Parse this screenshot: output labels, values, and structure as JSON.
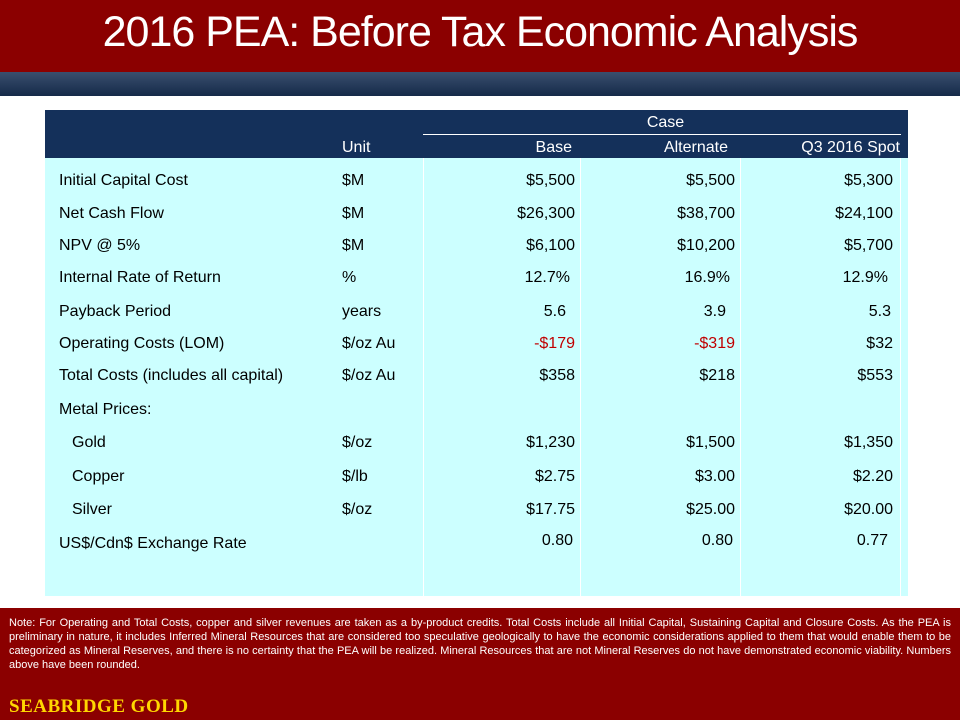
{
  "title": "2016 PEA: Before Tax Economic Analysis",
  "table": {
    "case_label": "Case",
    "headers": {
      "unit": "Unit",
      "base": "Base",
      "alternate": "Alternate",
      "spot": "Q3 2016 Spot"
    },
    "rows": [
      {
        "label": "Initial Capital Cost",
        "unit": "$M",
        "base": "$5,500",
        "alternate": "$5,500",
        "spot": "$5,300"
      },
      {
        "label": "Net Cash Flow",
        "unit": "$M",
        "base": "$26,300",
        "alternate": "$38,700",
        "spot": "$24,100"
      },
      {
        "label": "NPV @ 5%",
        "unit": "$M",
        "base": "$6,100",
        "alternate": "$10,200",
        "spot": "$5,700"
      },
      {
        "label": "Internal Rate of Return",
        "unit": "%",
        "base": "12.7%",
        "alternate": "16.9%",
        "spot": "12.9%"
      },
      {
        "label": "Payback Period",
        "unit": "years",
        "base": "5.6",
        "alternate": "3.9",
        "spot": "5.3"
      },
      {
        "label": "Operating Costs (LOM)",
        "unit": "$/oz Au",
        "base": "-$179",
        "alternate": "-$319",
        "spot": "$32"
      },
      {
        "label": "Total Costs (includes all capital)",
        "unit": "$/oz Au",
        "base": "$358",
        "alternate": "$218",
        "spot": "$553"
      },
      {
        "label": "Metal Prices:",
        "unit": "",
        "base": "",
        "alternate": "",
        "spot": ""
      },
      {
        "label": "Gold",
        "unit": "$/oz",
        "base": "$1,230",
        "alternate": "$1,500",
        "spot": "$1,350"
      },
      {
        "label": "Copper",
        "unit": "$/lb",
        "base": "$2.75",
        "alternate": "$3.00",
        "spot": "$2.20"
      },
      {
        "label": "Silver",
        "unit": "$/oz",
        "base": "$17.75",
        "alternate": "$25.00",
        "spot": "$20.00"
      },
      {
        "label": "US$/Cdn$ Exchange Rate",
        "unit": "",
        "base": "0.80",
        "alternate": "0.80",
        "spot": "0.77"
      }
    ]
  },
  "note": "Note: For Operating and Total Costs, copper and silver revenues are taken as a by-product credits. Total Costs include all Initial Capital, Sustaining Capital and Closure Costs. As the PEA is preliminary in nature, it includes Inferred Mineral Resources that are considered too speculative geologically to have the economic considerations applied to them that would enable them to be categorized as Mineral Reserves, and there is no certainty that the PEA will be realized. Mineral Resources that are not Mineral Reserves do not have demonstrated economic viability. Numbers above have been rounded.",
  "logo_text": "SEABRIDGE GOLD",
  "colors": {
    "header": "#8b0000",
    "band": "#152a49",
    "table_head": "#14305a",
    "table_body": "#ccffff",
    "negative": "#c00000",
    "logo": "#ffd700"
  }
}
